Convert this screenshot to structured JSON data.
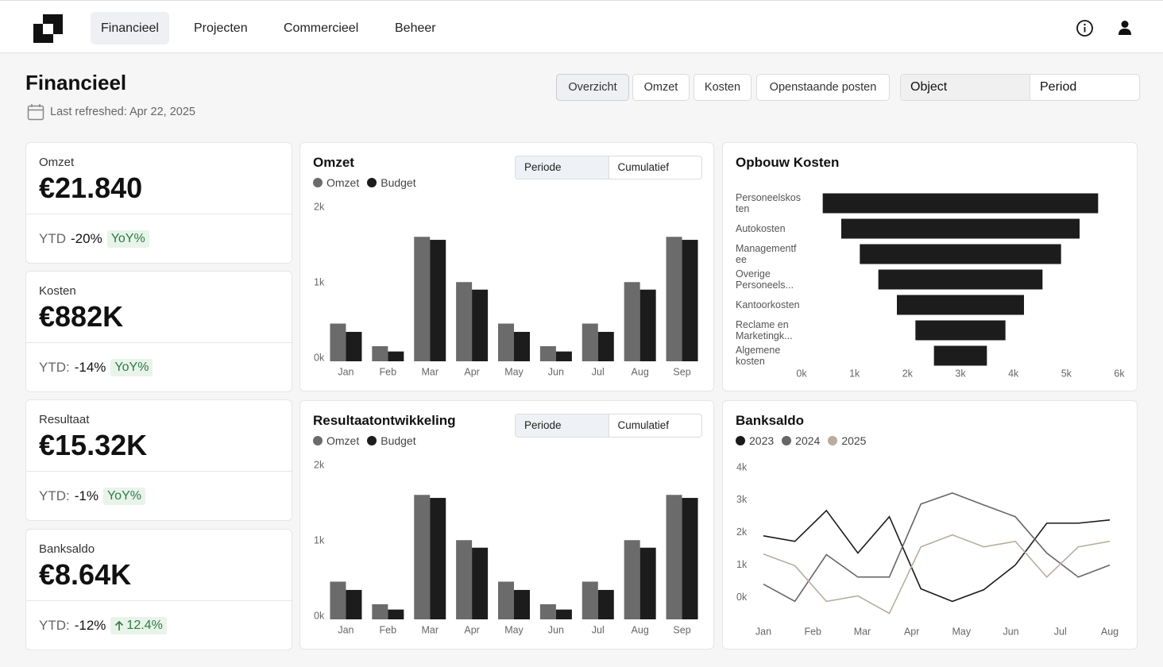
{
  "nav": {
    "items": [
      "Financieel",
      "Projecten",
      "Commercieel",
      "Beheer"
    ]
  },
  "header": {
    "title": "Financieel",
    "refreshed": "Last refreshed: Apr 22, 2025",
    "tabs": [
      "Overzicht",
      "Omzet",
      "Kosten",
      "Openstaande posten"
    ],
    "filters": [
      "Object",
      "Period"
    ]
  },
  "kpis": [
    {
      "label": "Omzet",
      "value": "€21.840",
      "ytd_label": "YTD",
      "ytd": "-20%",
      "badge": "YoY%"
    },
    {
      "label": "Kosten",
      "value": "€882K",
      "ytd_label": "YTD:",
      "ytd": "-14%",
      "badge": "YoY%"
    },
    {
      "label": "Resultaat",
      "value": "€15.32K",
      "ytd_label": "YTD:",
      "ytd": "-1%",
      "badge": "YoY%"
    },
    {
      "label": "Banksaldo",
      "value": "€8.64K",
      "ytd_label": "YTD:",
      "ytd": "-12%",
      "badge": "12.4%"
    }
  ],
  "chart_data": [
    {
      "type": "bar",
      "title": "Omzet",
      "toggle": [
        "Periode",
        "Cumulatief"
      ],
      "categories": [
        "Jan",
        "Feb",
        "Mar",
        "Apr",
        "May",
        "Jun",
        "Jul",
        "Aug",
        "Sep"
      ],
      "series": [
        {
          "name": "Omzet",
          "color": "#6b6b6b",
          "values": [
            500,
            200,
            1650,
            1050,
            500,
            200,
            500,
            1050,
            1650
          ]
        },
        {
          "name": "Budget",
          "color": "#1c1c1c",
          "values": [
            390,
            130,
            1610,
            950,
            390,
            130,
            390,
            950,
            1610
          ]
        }
      ],
      "ylim": [
        0,
        2000
      ],
      "yticks": [
        {
          "value": 0,
          "label": "0k"
        },
        {
          "value": 1000,
          "label": "1k"
        },
        {
          "value": 2000,
          "label": "2k"
        }
      ],
      "grid": false
    },
    {
      "type": "bar",
      "title": "Resultaatontwikkeling",
      "toggle": [
        "Periode",
        "Cumulatief"
      ],
      "categories": [
        "Jan",
        "Feb",
        "Mar",
        "Apr",
        "May",
        "Jun",
        "Jul",
        "Aug",
        "Sep"
      ],
      "series": [
        {
          "name": "Omzet",
          "color": "#6b6b6b",
          "values": [
            500,
            200,
            1650,
            1050,
            500,
            200,
            500,
            1050,
            1650
          ]
        },
        {
          "name": "Budget",
          "color": "#1c1c1c",
          "values": [
            390,
            130,
            1610,
            950,
            390,
            130,
            390,
            950,
            1610
          ]
        }
      ],
      "ylim": [
        0,
        2000
      ],
      "yticks": [
        {
          "value": 0,
          "label": "0k"
        },
        {
          "value": 1000,
          "label": "1k"
        },
        {
          "value": 2000,
          "label": "2k"
        }
      ],
      "grid": false
    },
    {
      "type": "funnel",
      "title": "Opbouw Kosten",
      "categories": [
        "Personeelskosten",
        "Autokosten",
        "Managementfee",
        "Overige Personeels...",
        "Kantoorkosten",
        "Reclame en Marketingk...",
        "Algemene kosten"
      ],
      "values": [
        5200,
        4500,
        3800,
        3100,
        2400,
        1700,
        1000
      ],
      "color": "#1c1c1c",
      "xlim": [
        0,
        6000
      ],
      "xticks": [
        {
          "value": 0,
          "label": "0k"
        },
        {
          "value": 1000,
          "label": "1k"
        },
        {
          "value": 2000,
          "label": "2k"
        },
        {
          "value": 3000,
          "label": "3k"
        },
        {
          "value": 4000,
          "label": "4k"
        },
        {
          "value": 5000,
          "label": "5k"
        },
        {
          "value": 6000,
          "label": "6k"
        }
      ],
      "grid": false
    },
    {
      "type": "line",
      "title": "Banksaldo",
      "x": [
        1,
        2,
        3,
        4,
        5,
        6,
        7,
        8,
        9,
        10,
        11,
        12
      ],
      "xlim": [
        1,
        12
      ],
      "xticks": [
        {
          "value": 1,
          "label": "Jan"
        },
        {
          "value": 2.57,
          "label": "Feb"
        },
        {
          "value": 4.14,
          "label": "Mar"
        },
        {
          "value": 5.71,
          "label": "Apr"
        },
        {
          "value": 7.29,
          "label": "May"
        },
        {
          "value": 8.86,
          "label": "Jun"
        },
        {
          "value": 10.43,
          "label": "Jul"
        },
        {
          "value": 12,
          "label": "Aug"
        }
      ],
      "series": [
        {
          "name": "2023",
          "color": "#1a1a1a",
          "values": [
            1900,
            1730,
            2680,
            1370,
            2490,
            270,
            -120,
            240,
            1000,
            2290,
            2290,
            2390
          ]
        },
        {
          "name": "2024",
          "color": "#666666",
          "values": [
            410,
            -120,
            1320,
            630,
            630,
            2880,
            3220,
            2850,
            2490,
            1370,
            630,
            1000
          ]
        },
        {
          "name": "2025",
          "color": "#b8ad9e",
          "values": [
            1340,
            980,
            -120,
            50,
            -490,
            1560,
            1930,
            1560,
            1730,
            630,
            1560,
            1730
          ]
        }
      ],
      "ylim": [
        -600,
        4000
      ],
      "yticks": [
        {
          "value": 0,
          "label": "0k"
        },
        {
          "value": 1000,
          "label": "1k"
        },
        {
          "value": 2000,
          "label": "2k"
        },
        {
          "value": 3000,
          "label": "3k"
        },
        {
          "value": 4000,
          "label": "4k"
        }
      ],
      "grid": false
    }
  ]
}
